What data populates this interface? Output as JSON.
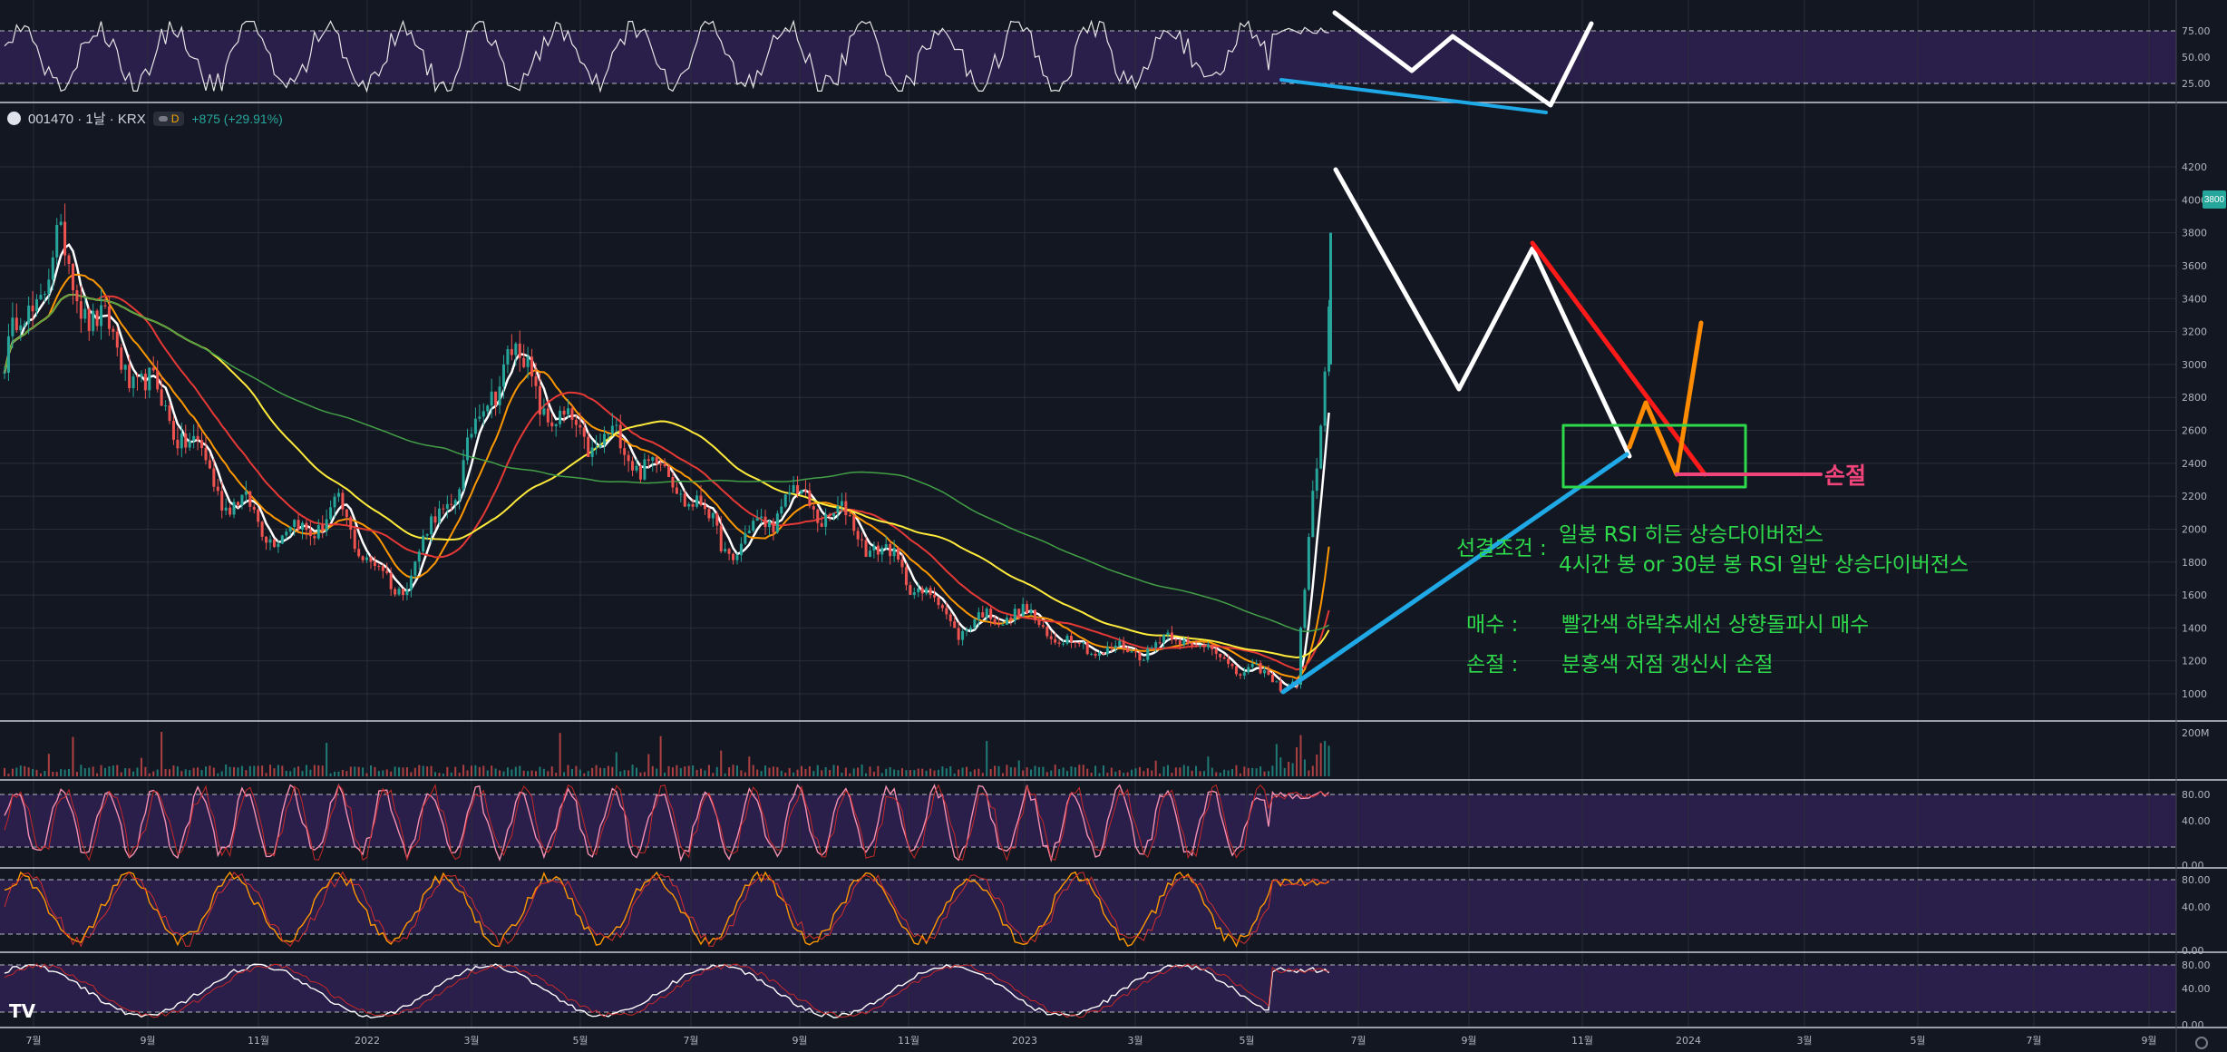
{
  "symbol": {
    "ticker_line": "001470 · 1날 · KRX",
    "interval_badge": "D",
    "change": "+875 (+29.91%)",
    "last_price_badge": "3800"
  },
  "colors": {
    "background": "#131722",
    "grid": "#2a2e39",
    "candle_up": "#26a69a",
    "candle_down": "#ef5350",
    "band_fill": "#2a1e4a",
    "ma_white": "#ffffff",
    "ma_orange": "#ff9800",
    "ma_red": "#e53935",
    "ma_yellow": "#ffeb3b",
    "ma_green": "#43a047",
    "annotation_green": "#2ed94b",
    "annotation_blue": "#1fa9e6",
    "annotation_pink": "#f0447a"
  },
  "x_axis_labels": [
    "7월",
    "9월",
    "11월",
    "2022",
    "3월",
    "5월",
    "7월",
    "9월",
    "11월",
    "2023",
    "3월",
    "5월",
    "7월",
    "9월",
    "11월",
    "2024",
    "3월",
    "5월",
    "7월",
    "9월"
  ],
  "rsi_panel": {
    "ticks": [
      "75.00",
      "50.00",
      "25.00"
    ]
  },
  "price_panel": {
    "ticks": [
      "4200",
      "4000",
      "3800",
      "3600",
      "3400",
      "3200",
      "3000",
      "2800",
      "2600",
      "2400",
      "2200",
      "2000",
      "1800",
      "1600",
      "1400",
      "1200",
      "1000"
    ]
  },
  "volume_panel": {
    "tick": "200M"
  },
  "osc_panel_1": {
    "ticks": [
      "80.00",
      "40.00",
      "0.00"
    ]
  },
  "osc_panel_2": {
    "ticks": [
      "80.00",
      "40.00",
      "0.00"
    ]
  },
  "osc_panel_3": {
    "ticks": [
      "80.00",
      "40.00",
      "0.00"
    ]
  },
  "annotations": {
    "entry_condition_label": "선결조건 :",
    "entry_condition_line1": "일봉 RSI 히든 상승다이버전스",
    "entry_condition_line2": "4시간 봉 or 30분 봉 RSI 일반 상승다이버전스",
    "buy_label": "매수 :",
    "buy_text": "빨간색 하락추세선 상향돌파시 매수",
    "stop_label": "손절 :",
    "stop_text": "분홍색 저점 갱신시 손절",
    "stop_line_label": "손절"
  },
  "chart_data": {
    "type": "candlestick",
    "price_range": [
      900,
      4300
    ],
    "close_path": [
      [
        "2021-06",
        2950
      ],
      [
        "2021-07",
        3700
      ],
      [
        "2021-08",
        3100
      ],
      [
        "2021-09",
        2700
      ],
      [
        "2021-10",
        2200
      ],
      [
        "2021-11",
        1950
      ],
      [
        "2021-12",
        2100
      ],
      [
        "2022-01",
        1600
      ],
      [
        "2022-02",
        2200
      ],
      [
        "2022-03",
        3100
      ],
      [
        "2022-04",
        2600
      ],
      [
        "2022-05",
        2500
      ],
      [
        "2022-06",
        2300
      ],
      [
        "2022-07",
        1850
      ],
      [
        "2022-08",
        2200
      ],
      [
        "2022-09",
        2050
      ],
      [
        "2022-10",
        1750
      ],
      [
        "2022-11",
        1400
      ],
      [
        "2022-12",
        1500
      ],
      [
        "2023-01",
        1300
      ],
      [
        "2023-02",
        1250
      ],
      [
        "2023-03",
        1350
      ],
      [
        "2023-04",
        1150
      ],
      [
        "2023-05",
        1050
      ],
      [
        "2023-06",
        2300
      ],
      [
        "2023-06",
        2925
      ],
      [
        "2023-06",
        3800
      ]
    ]
  }
}
